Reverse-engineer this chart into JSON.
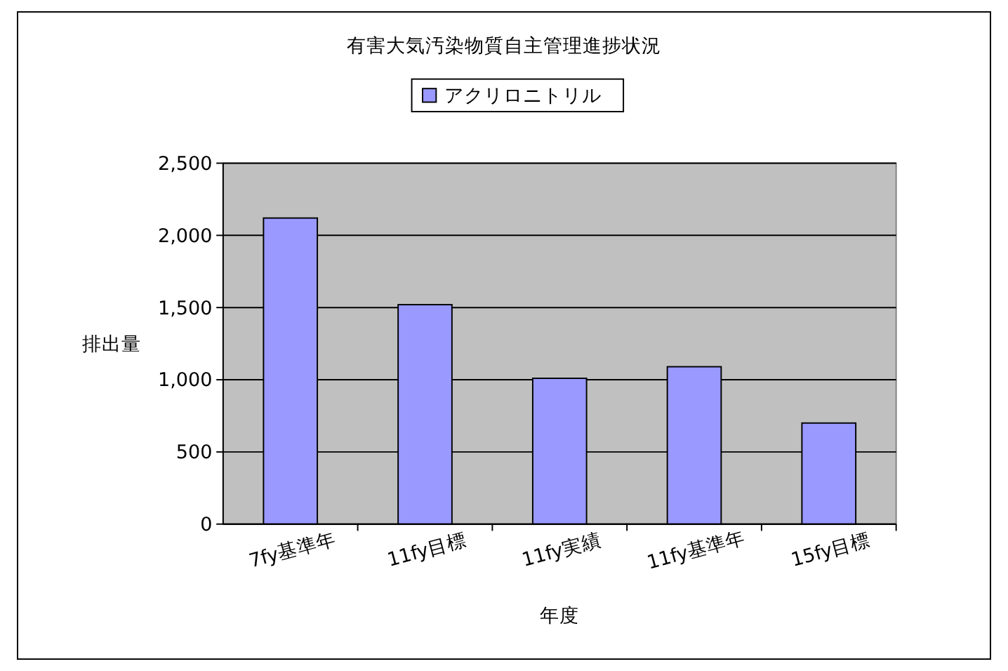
{
  "chart_data": {
    "type": "bar",
    "title": "有害大気汚染物質自主管理進捗状況",
    "xlabel": "年度",
    "ylabel": "排出量",
    "categories": [
      "7fy基準年",
      "11fy目標",
      "11fy実績",
      "11fy基準年",
      "15fy目標"
    ],
    "series": [
      {
        "name": "アクリロニトリル",
        "color": "#9999ff",
        "values": [
          2120,
          1520,
          1010,
          1090,
          700
        ]
      }
    ],
    "ylim": [
      0,
      2500
    ],
    "yticks": [
      {
        "value": 0,
        "label": "0"
      },
      {
        "value": 500,
        "label": "500"
      },
      {
        "value": 1000,
        "label": "1,000"
      },
      {
        "value": 1500,
        "label": "1,500"
      },
      {
        "value": 2000,
        "label": "2,000"
      },
      {
        "value": 2500,
        "label": "2,500"
      }
    ],
    "grid": "y",
    "legend": "top"
  }
}
